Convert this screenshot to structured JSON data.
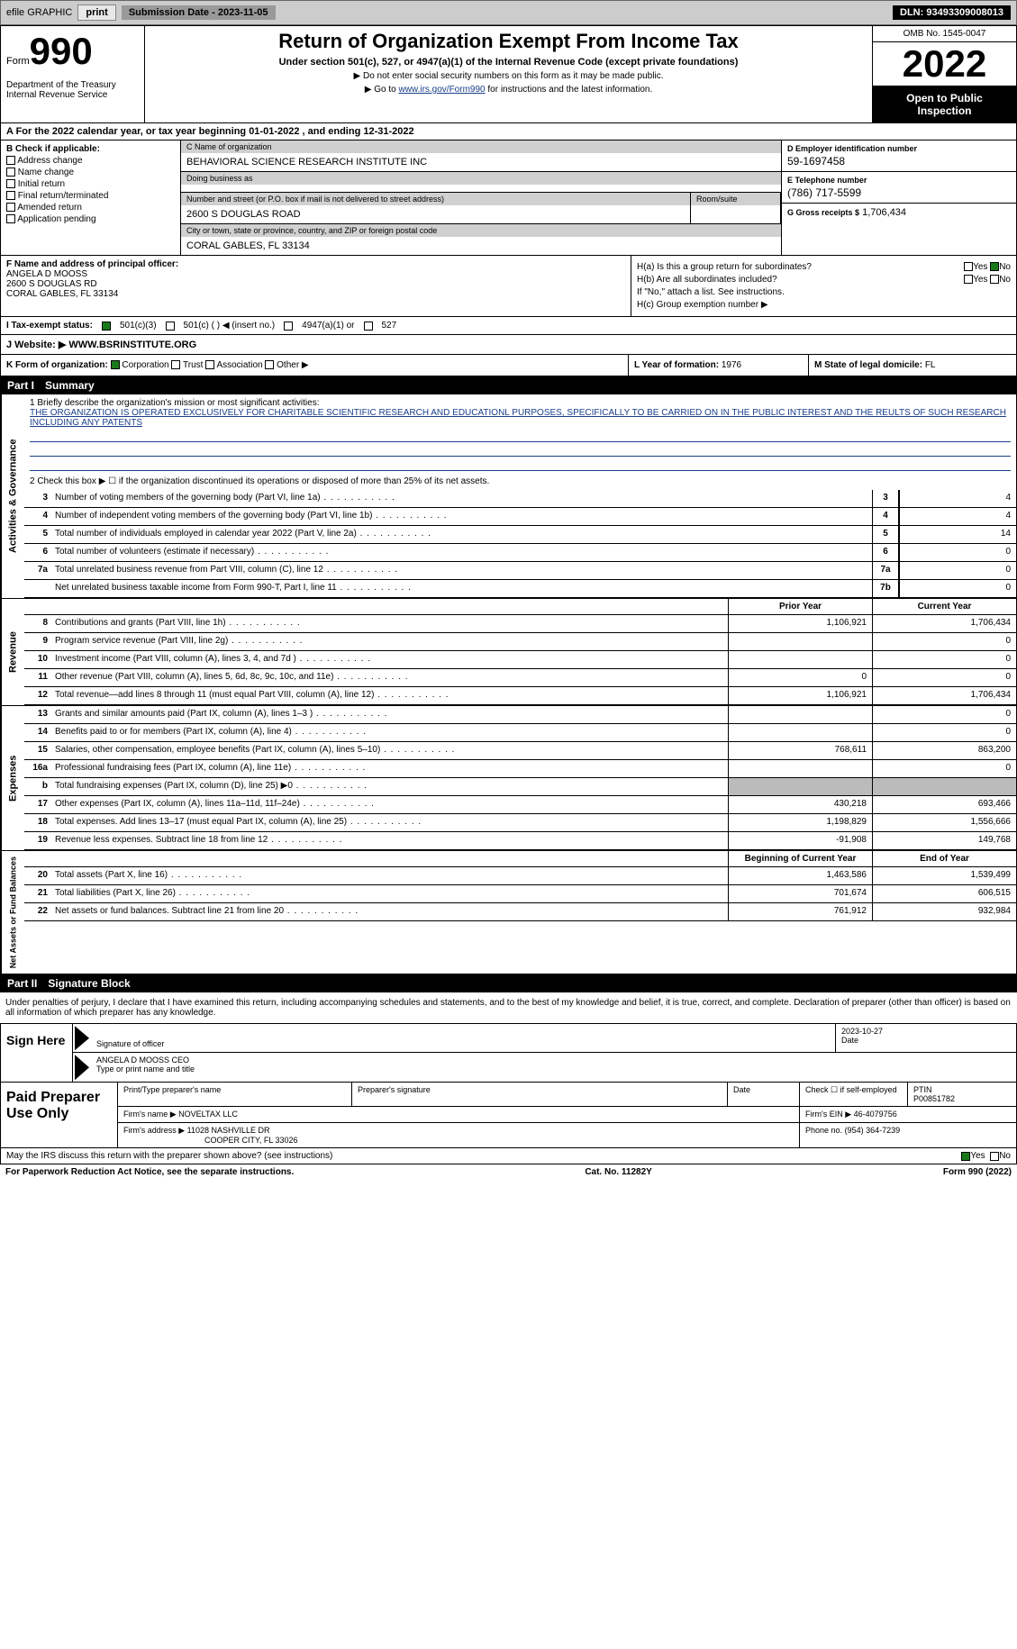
{
  "colors": {
    "link": "#1a3e8b",
    "black": "#000000",
    "check_green": "#1a7a1a",
    "topbar_bg": "#cccccc",
    "shade": "#bbbbbb"
  },
  "topbar": {
    "efile": "efile GRAPHIC",
    "print": "print",
    "sub_date": "Submission Date - 2023-11-05",
    "dln": "DLN: 93493309008013"
  },
  "header": {
    "form_small": "Form",
    "form_big": "990",
    "dept": "Department of the Treasury Internal Revenue Service",
    "title": "Return of Organization Exempt From Income Tax",
    "subtitle": "Under section 501(c), 527, or 4947(a)(1) of the Internal Revenue Code (except private foundations)",
    "warn": "▶ Do not enter social security numbers on this form as it may be made public.",
    "goto": "▶ Go to www.irs.gov/Form990 for instructions and the latest information.",
    "goto_link": "www.irs.gov/Form990",
    "omb": "OMB No. 1545-0047",
    "year": "2022",
    "open": "Open to Public Inspection"
  },
  "row_a": "A For the 2022 calendar year, or tax year beginning 01-01-2022    , and ending 12-31-2022",
  "col_b": {
    "label": "B Check if applicable:",
    "items": [
      "Address change",
      "Name change",
      "Initial return",
      "Final return/terminated",
      "Amended return",
      "Application pending"
    ]
  },
  "col_c": {
    "name_label": "C Name of organization",
    "name": "BEHAVIORAL SCIENCE RESEARCH INSTITUTE INC",
    "dba_label": "Doing business as",
    "dba": "",
    "addr_label": "Number and street (or P.O. box if mail is not delivered to street address)",
    "addr": "2600 S DOUGLAS ROAD",
    "room_label": "Room/suite",
    "city_label": "City or town, state or province, country, and ZIP or foreign postal code",
    "city": "CORAL GABLES, FL  33134"
  },
  "col_d": {
    "ein_label": "D Employer identification number",
    "ein": "59-1697458",
    "phone_label": "E Telephone number",
    "phone": "(786) 717-5599",
    "gross_label": "G Gross receipts $",
    "gross": "1,706,434"
  },
  "col_f": {
    "label": "F  Name and address of principal officer:",
    "name": "ANGELA D MOOSS",
    "addr1": "2600 S DOUGLAS RD",
    "addr2": "CORAL GABLES, FL  33134"
  },
  "col_h": {
    "ha": "H(a)  Is this a group return for subordinates?",
    "hb": "H(b)  Are all subordinates included?",
    "hb_note": "If \"No,\" attach a list. See instructions.",
    "hc": "H(c)  Group exemption number ▶",
    "yes": "Yes",
    "no": "No"
  },
  "row_i": {
    "label": "I   Tax-exempt status:",
    "opt1": "501(c)(3)",
    "opt2": "501(c) (   ) ◀ (insert no.)",
    "opt3": "4947(a)(1) or",
    "opt4": "527"
  },
  "row_j": {
    "label": "J   Website: ▶",
    "value": "WWW.BSRINSTITUTE.ORG"
  },
  "row_k": {
    "label": "K Form of organization:",
    "opts": [
      "Corporation",
      "Trust",
      "Association",
      "Other ▶"
    ]
  },
  "row_l": {
    "label": "L Year of formation:",
    "value": "1976"
  },
  "row_m": {
    "label": "M State of legal domicile:",
    "value": "FL"
  },
  "part1": {
    "num": "Part I",
    "title": "Summary"
  },
  "mission": {
    "q1": "1   Briefly describe the organization's mission or most significant activities:",
    "text": "THE ORGANIZATION IS OPERATED EXCLUSIVELY FOR CHARITABLE SCIENTIFIC RESEARCH AND EDUCATIONL PURPOSES, SPECIFICALLY TO BE CARRIED ON IN THE PUBLIC INTEREST AND THE REULTS OF SUCH RESEARCH INCLUDING ANY PATENTS",
    "q2": "2   Check this box ▶ ☐  if the organization discontinued its operations or disposed of more than 25% of its net assets."
  },
  "gov_lines": [
    {
      "n": "3",
      "d": "Number of voting members of the governing body (Part VI, line 1a)",
      "box": "3",
      "v": "4"
    },
    {
      "n": "4",
      "d": "Number of independent voting members of the governing body (Part VI, line 1b)",
      "box": "4",
      "v": "4"
    },
    {
      "n": "5",
      "d": "Total number of individuals employed in calendar year 2022 (Part V, line 2a)",
      "box": "5",
      "v": "14"
    },
    {
      "n": "6",
      "d": "Total number of volunteers (estimate if necessary)",
      "box": "6",
      "v": "0"
    },
    {
      "n": "7a",
      "d": "Total unrelated business revenue from Part VIII, column (C), line 12",
      "box": "7a",
      "v": "0"
    },
    {
      "n": "",
      "d": "Net unrelated business taxable income from Form 990-T, Part I, line 11",
      "box": "7b",
      "v": "0"
    }
  ],
  "col_headers": {
    "prior": "Prior Year",
    "current": "Current Year"
  },
  "rev_lines": [
    {
      "n": "8",
      "d": "Contributions and grants (Part VIII, line 1h)",
      "p": "1,106,921",
      "c": "1,706,434"
    },
    {
      "n": "9",
      "d": "Program service revenue (Part VIII, line 2g)",
      "p": "",
      "c": "0"
    },
    {
      "n": "10",
      "d": "Investment income (Part VIII, column (A), lines 3, 4, and 7d )",
      "p": "",
      "c": "0"
    },
    {
      "n": "11",
      "d": "Other revenue (Part VIII, column (A), lines 5, 6d, 8c, 9c, 10c, and 11e)",
      "p": "0",
      "c": "0"
    },
    {
      "n": "12",
      "d": "Total revenue—add lines 8 through 11 (must equal Part VIII, column (A), line 12)",
      "p": "1,106,921",
      "c": "1,706,434"
    }
  ],
  "exp_lines": [
    {
      "n": "13",
      "d": "Grants and similar amounts paid (Part IX, column (A), lines 1–3 )",
      "p": "",
      "c": "0"
    },
    {
      "n": "14",
      "d": "Benefits paid to or for members (Part IX, column (A), line 4)",
      "p": "",
      "c": "0"
    },
    {
      "n": "15",
      "d": "Salaries, other compensation, employee benefits (Part IX, column (A), lines 5–10)",
      "p": "768,611",
      "c": "863,200"
    },
    {
      "n": "16a",
      "d": "Professional fundraising fees (Part IX, column (A), line 11e)",
      "p": "",
      "c": "0"
    },
    {
      "n": "b",
      "d": "Total fundraising expenses (Part IX, column (D), line 25) ▶0",
      "p": "shade",
      "c": "shade"
    },
    {
      "n": "17",
      "d": "Other expenses (Part IX, column (A), lines 11a–11d, 11f–24e)",
      "p": "430,218",
      "c": "693,466"
    },
    {
      "n": "18",
      "d": "Total expenses. Add lines 13–17 (must equal Part IX, column (A), line 25)",
      "p": "1,198,829",
      "c": "1,556,666"
    },
    {
      "n": "19",
      "d": "Revenue less expenses. Subtract line 18 from line 12",
      "p": "-91,908",
      "c": "149,768"
    }
  ],
  "net_headers": {
    "begin": "Beginning of Current Year",
    "end": "End of Year"
  },
  "net_lines": [
    {
      "n": "20",
      "d": "Total assets (Part X, line 16)",
      "p": "1,463,586",
      "c": "1,539,499"
    },
    {
      "n": "21",
      "d": "Total liabilities (Part X, line 26)",
      "p": "701,674",
      "c": "606,515"
    },
    {
      "n": "22",
      "d": "Net assets or fund balances. Subtract line 21 from line 20",
      "p": "761,912",
      "c": "932,984"
    }
  ],
  "side_labels": {
    "gov": "Activities & Governance",
    "rev": "Revenue",
    "exp": "Expenses",
    "net": "Net Assets or Fund Balances"
  },
  "part2": {
    "num": "Part II",
    "title": "Signature Block"
  },
  "sig_text": "Under penalties of perjury, I declare that I have examined this return, including accompanying schedules and statements, and to the best of my knowledge and belief, it is true, correct, and complete. Declaration of preparer (other than officer) is based on all information of which preparer has any knowledge.",
  "sign": {
    "here": "Sign Here",
    "sig_label": "Signature of officer",
    "date": "2023-10-27",
    "date_label": "Date",
    "name": "ANGELA D MOOSS CEO",
    "name_label": "Type or print name and title"
  },
  "prep": {
    "title": "Paid Preparer Use Only",
    "h_name": "Print/Type preparer's name",
    "h_sig": "Preparer's signature",
    "h_date": "Date",
    "h_check": "Check ☐ if self-employed",
    "h_ptin": "PTIN",
    "ptin": "P00851782",
    "firm_label": "Firm's name     ▶",
    "firm": "NOVELTAX LLC",
    "ein_label": "Firm's EIN ▶",
    "ein": "46-4079756",
    "addr_label": "Firm's address ▶",
    "addr1": "11028 NASHVILLE DR",
    "addr2": "COOPER CITY, FL  33026",
    "phone_label": "Phone no.",
    "phone": "(954) 364-7239"
  },
  "discuss": {
    "text": "May the IRS discuss this return with the preparer shown above? (see instructions)",
    "yes": "Yes",
    "no": "No"
  },
  "footer": {
    "pra": "For Paperwork Reduction Act Notice, see the separate instructions.",
    "cat": "Cat. No. 11282Y",
    "form": "Form 990 (2022)"
  }
}
